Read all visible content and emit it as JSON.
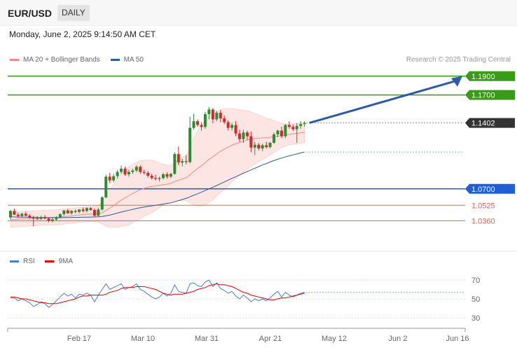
{
  "header": {
    "symbol": "EUR/USD",
    "period": "DAILY",
    "datetime": "Monday, June 2, 2025 9:14:50 AM CET"
  },
  "legend": {
    "main": [
      {
        "label": "MA 20 + Bollinger Bands",
        "color": "#f28b82"
      },
      {
        "label": "MA 50",
        "color": "#2e5c99"
      }
    ],
    "rsi": [
      {
        "label": "RSI",
        "color": "#4d79d6"
      },
      {
        "label": "9MA",
        "color": "#e00000"
      }
    ]
  },
  "credit": "Research © 2025 Trading Central",
  "chart_data": {
    "type": "candlestick",
    "y_range": [
      1.008,
      1.204
    ],
    "x_labels": [
      "Feb 17",
      "Mar 10",
      "Mar 31",
      "Apr 21",
      "May 12",
      "Jun 2",
      "Jun 16"
    ],
    "levels": [
      {
        "value": "1.1900",
        "price": 1.19,
        "kind": "resistance",
        "color": "#3a9a1a"
      },
      {
        "value": "1.1700",
        "price": 1.17,
        "kind": "resistance",
        "color": "#3a9a1a"
      },
      {
        "value": "1.1402",
        "price": 1.1402,
        "kind": "last",
        "color": "#333333"
      },
      {
        "value": "1.0700",
        "price": 1.07,
        "kind": "pivot",
        "color": "#1f5fd6"
      },
      {
        "value": "1.0525",
        "price": 1.0525,
        "kind": "support",
        "color": "#e06060"
      },
      {
        "value": "1.0360",
        "price": 1.036,
        "kind": "support",
        "color": "#e06060"
      }
    ],
    "candles": [
      [
        1.0395,
        1.0475,
        1.0375,
        1.0465
      ],
      [
        1.0465,
        1.049,
        1.042,
        1.0425
      ],
      [
        1.0425,
        1.0445,
        1.039,
        1.041
      ],
      [
        1.041,
        1.0445,
        1.0395,
        1.0435
      ],
      [
        1.0435,
        1.0455,
        1.0405,
        1.0415
      ],
      [
        1.0415,
        1.043,
        1.0385,
        1.0395
      ],
      [
        1.0395,
        1.0415,
        1.03,
        1.0385
      ],
      [
        1.0385,
        1.041,
        1.037,
        1.038
      ],
      [
        1.038,
        1.0415,
        1.037,
        1.04
      ],
      [
        1.04,
        1.042,
        1.0375,
        1.0385
      ],
      [
        1.0385,
        1.0395,
        1.0345,
        1.036
      ],
      [
        1.036,
        1.039,
        1.0345,
        1.0375
      ],
      [
        1.0375,
        1.041,
        1.036,
        1.0395
      ],
      [
        1.0395,
        1.044,
        1.0385,
        1.043
      ],
      [
        1.043,
        1.0475,
        1.0415,
        1.047
      ],
      [
        1.047,
        1.0485,
        1.0435,
        1.044
      ],
      [
        1.044,
        1.0475,
        1.0425,
        1.0465
      ],
      [
        1.0465,
        1.048,
        1.044,
        1.0455
      ],
      [
        1.0455,
        1.0485,
        1.044,
        1.048
      ],
      [
        1.048,
        1.05,
        1.045,
        1.0465
      ],
      [
        1.0465,
        1.0505,
        1.045,
        1.0495
      ],
      [
        1.0495,
        1.0505,
        1.0465,
        1.0475
      ],
      [
        1.0475,
        1.049,
        1.04,
        1.0415
      ],
      [
        1.0415,
        1.05,
        1.04,
        1.048
      ],
      [
        1.048,
        1.062,
        1.047,
        1.061
      ],
      [
        1.061,
        1.085,
        1.06,
        1.083
      ],
      [
        1.083,
        1.087,
        1.076,
        1.079
      ],
      [
        1.079,
        1.086,
        1.077,
        1.0835
      ],
      [
        1.0835,
        1.09,
        1.081,
        1.088
      ],
      [
        1.088,
        1.095,
        1.086,
        1.0915
      ],
      [
        1.0915,
        1.0935,
        1.084,
        1.0855
      ],
      [
        1.0855,
        1.0905,
        1.083,
        1.088
      ],
      [
        1.088,
        1.0915,
        1.086,
        1.0895
      ],
      [
        1.0895,
        1.095,
        1.088,
        1.0935
      ],
      [
        1.0935,
        1.095,
        1.086,
        1.088
      ],
      [
        1.088,
        1.0905,
        1.085,
        1.087
      ],
      [
        1.087,
        1.089,
        1.082,
        1.084
      ],
      [
        1.084,
        1.086,
        1.08,
        1.0815
      ],
      [
        1.0815,
        1.085,
        1.079,
        1.0805
      ],
      [
        1.0805,
        1.083,
        1.078,
        1.0815
      ],
      [
        1.0815,
        1.087,
        1.08,
        1.0855
      ],
      [
        1.0855,
        1.0875,
        1.081,
        1.083
      ],
      [
        1.083,
        1.087,
        1.0815,
        1.086
      ],
      [
        1.086,
        1.109,
        1.085,
        1.107
      ],
      [
        1.107,
        1.115,
        1.095,
        1.098
      ],
      [
        1.098,
        1.102,
        1.094,
        1.0995
      ],
      [
        1.0995,
        1.106,
        1.096,
        1.0985
      ],
      [
        1.0985,
        1.147,
        1.097,
        1.135
      ],
      [
        1.135,
        1.15,
        1.133,
        1.142
      ],
      [
        1.142,
        1.144,
        1.136,
        1.138
      ],
      [
        1.138,
        1.141,
        1.132,
        1.136
      ],
      [
        1.136,
        1.152,
        1.134,
        1.1495
      ],
      [
        1.1495,
        1.157,
        1.144,
        1.1545
      ],
      [
        1.1545,
        1.156,
        1.14,
        1.144
      ],
      [
        1.144,
        1.153,
        1.142,
        1.151
      ],
      [
        1.151,
        1.154,
        1.141,
        1.145
      ],
      [
        1.145,
        1.148,
        1.139,
        1.141
      ],
      [
        1.141,
        1.143,
        1.132,
        1.135
      ],
      [
        1.135,
        1.14,
        1.132,
        1.138
      ],
      [
        1.138,
        1.142,
        1.126,
        1.129
      ],
      [
        1.129,
        1.133,
        1.12,
        1.123
      ],
      [
        1.123,
        1.133,
        1.119,
        1.13
      ],
      [
        1.13,
        1.132,
        1.122,
        1.126
      ],
      [
        1.126,
        1.131,
        1.109,
        1.114
      ],
      [
        1.114,
        1.12,
        1.106,
        1.117
      ],
      [
        1.117,
        1.119,
        1.111,
        1.113
      ],
      [
        1.113,
        1.118,
        1.11,
        1.1165
      ],
      [
        1.1165,
        1.12,
        1.113,
        1.1145
      ],
      [
        1.1145,
        1.12,
        1.113,
        1.119
      ],
      [
        1.119,
        1.13,
        1.118,
        1.128
      ],
      [
        1.128,
        1.133,
        1.125,
        1.132
      ],
      [
        1.132,
        1.136,
        1.124,
        1.126
      ],
      [
        1.126,
        1.139,
        1.124,
        1.138
      ],
      [
        1.138,
        1.142,
        1.134,
        1.136
      ],
      [
        1.136,
        1.1385,
        1.132,
        1.1335
      ],
      [
        1.1335,
        1.14,
        1.119,
        1.137
      ],
      [
        1.137,
        1.142,
        1.134,
        1.139
      ],
      [
        1.139,
        1.142,
        1.136,
        1.1402
      ]
    ],
    "ma20": [
      1.0372,
      1.0374,
      1.0377,
      1.038,
      1.0382,
      1.0385,
      1.0386,
      1.0387,
      1.039,
      1.0393,
      1.0395,
      1.0396,
      1.0397,
      1.04,
      1.0405,
      1.041,
      1.0414,
      1.0418,
      1.0422,
      1.0426,
      1.043,
      1.0432,
      1.0431,
      1.0433,
      1.0446,
      1.0472,
      1.0495,
      1.0522,
      1.0552,
      1.058,
      1.0605,
      1.0628,
      1.065,
      1.0672,
      1.069,
      1.0705,
      1.0718,
      1.0726,
      1.0732,
      1.0738,
      1.0744,
      1.075,
      1.0758,
      1.0778,
      1.0792,
      1.0806,
      1.0818,
      1.085,
      1.0885,
      1.0916,
      1.0946,
      1.098,
      1.1014,
      1.1042,
      1.1072,
      1.11,
      1.1124,
      1.1144,
      1.1164,
      1.118,
      1.1194,
      1.1208,
      1.122,
      1.1228,
      1.1235,
      1.1239,
      1.1243,
      1.1245,
      1.125,
      1.1256,
      1.1262,
      1.1268,
      1.1274,
      1.128,
      1.1285,
      1.129,
      1.1296,
      1.1302
    ],
    "bb_width": [
      0.008,
      0.008,
      0.008,
      0.008,
      0.008,
      0.008,
      0.008,
      0.008,
      0.008,
      0.008,
      0.008,
      0.008,
      0.008,
      0.008,
      0.008,
      0.008,
      0.008,
      0.008,
      0.008,
      0.008,
      0.008,
      0.008,
      0.008,
      0.009,
      0.012,
      0.017,
      0.02,
      0.023,
      0.026,
      0.028,
      0.03,
      0.031,
      0.031,
      0.031,
      0.031,
      0.03,
      0.029,
      0.028,
      0.026,
      0.024,
      0.022,
      0.02,
      0.019,
      0.021,
      0.022,
      0.023,
      0.024,
      0.03,
      0.036,
      0.04,
      0.043,
      0.045,
      0.046,
      0.046,
      0.045,
      0.044,
      0.043,
      0.041,
      0.039,
      0.037,
      0.035,
      0.033,
      0.031,
      0.029,
      0.027,
      0.025,
      0.023,
      0.021,
      0.019,
      0.017,
      0.015,
      0.013,
      0.012,
      0.011,
      0.011,
      0.011,
      0.011,
      0.011
    ],
    "ma50": [
      1.0402,
      1.0401,
      1.04,
      1.0399,
      1.0398,
      1.0397,
      1.0396,
      1.0396,
      1.0395,
      1.0395,
      1.0395,
      1.0394,
      1.0394,
      1.0394,
      1.0395,
      1.0395,
      1.0396,
      1.0396,
      1.0397,
      1.0398,
      1.0399,
      1.04,
      1.0401,
      1.0402,
      1.0406,
      1.0413,
      1.0421,
      1.0431,
      1.0442,
      1.0453,
      1.0463,
      1.0473,
      1.0482,
      1.0491,
      1.0499,
      1.0506,
      1.0513,
      1.0519,
      1.0525,
      1.0531,
      1.0538,
      1.0545,
      1.0552,
      1.0563,
      1.0575,
      1.0587,
      1.0599,
      1.0615,
      1.0632,
      1.0648,
      1.0664,
      1.0682,
      1.07,
      1.0718,
      1.0736,
      1.0755,
      1.0774,
      1.0793,
      1.0812,
      1.083,
      1.0848,
      1.0866,
      1.0885,
      1.0902,
      1.092,
      1.0937,
      1.0954,
      1.097,
      1.0986,
      1.1001,
      1.1015,
      1.1028,
      1.104,
      1.1052,
      1.1062,
      1.1072,
      1.1082,
      1.1093
    ],
    "rsi_levels": [
      "70",
      "50",
      "30"
    ],
    "rsi_y_range": [
      30,
      70
    ],
    "rsi": [
      51,
      51,
      48,
      50,
      48,
      46,
      42,
      44,
      47,
      45,
      41,
      44,
      48,
      52,
      56,
      53,
      55,
      51,
      55,
      54,
      56,
      54,
      47,
      54,
      60,
      66,
      60,
      62,
      64,
      66,
      60,
      62,
      63,
      66,
      60,
      58,
      55,
      52,
      50,
      52,
      56,
      53,
      56,
      65,
      58,
      57,
      56,
      66,
      67,
      64,
      63,
      68,
      70,
      63,
      67,
      61,
      59,
      56,
      58,
      53,
      50,
      54,
      51,
      47,
      50,
      48,
      50,
      48,
      51,
      55,
      58,
      52,
      57,
      54,
      52,
      54,
      56,
      57
    ],
    "rsi_ma9": [
      52,
      52,
      51,
      50,
      50,
      49,
      48,
      47,
      46,
      46,
      45,
      45,
      45,
      46,
      47,
      48,
      49,
      50,
      52,
      53,
      53,
      54,
      54,
      54,
      54,
      55,
      57,
      58,
      59,
      61,
      62,
      62,
      62,
      63,
      63,
      63,
      62,
      61,
      60,
      58,
      56,
      55,
      54,
      55,
      55,
      55,
      56,
      57,
      58,
      60,
      61,
      62,
      64,
      65,
      66,
      65,
      65,
      64,
      63,
      61,
      59,
      57,
      56,
      54,
      53,
      52,
      51,
      50,
      49,
      49,
      50,
      51,
      51,
      52,
      53,
      54,
      55,
      56
    ]
  }
}
